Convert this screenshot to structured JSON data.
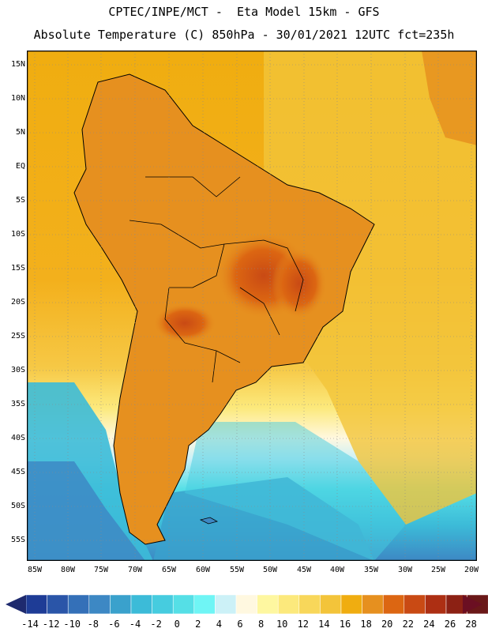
{
  "header": {
    "line1": "CPTEC/INPE/MCT -  Eta Model 15km - GFS",
    "line2": "Absolute Temperature (C) 850hPa - 30/01/2021 12UTC fct=235h"
  },
  "map": {
    "lat_labels": [
      "15N",
      "10N",
      "5N",
      "EQ",
      "5S",
      "10S",
      "15S",
      "20S",
      "25S",
      "30S",
      "35S",
      "40S",
      "45S",
      "50S",
      "55S"
    ],
    "lon_labels": [
      "85W",
      "80W",
      "75W",
      "70W",
      "65W",
      "60W",
      "55W",
      "50W",
      "45W",
      "40W",
      "35W",
      "30W",
      "25W",
      "20W"
    ]
  },
  "legend": {
    "values": [
      "-14",
      "-12",
      "-10",
      "-8",
      "-6",
      "-4",
      "-2",
      "0",
      "2",
      "4",
      "6",
      "8",
      "10",
      "12",
      "14",
      "16",
      "18",
      "20",
      "22",
      "24",
      "26",
      "28"
    ],
    "colors": [
      "#1e3c96",
      "#2a55a8",
      "#3470b8",
      "#3d88c4",
      "#3aa1cc",
      "#3cbbd8",
      "#46ccdf",
      "#55dfe6",
      "#6ff5f5",
      "#ccf1f7",
      "#fff8e0",
      "#fef7a0",
      "#fce97c",
      "#f8d75a",
      "#f3c43a",
      "#f0ad10",
      "#e6901f",
      "#dc6612",
      "#c94a14",
      "#ad2f13",
      "#8c2114",
      "#6a1818"
    ]
  }
}
